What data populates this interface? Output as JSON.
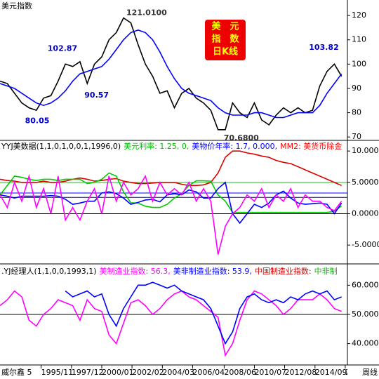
{
  "chart_data": [
    {
      "type": "line",
      "title": "美元指数",
      "x": [
        1993,
        1993.5,
        1994,
        1994.5,
        1995,
        1995.5,
        1996,
        1996.5,
        1997,
        1997.5,
        1998,
        1998.5,
        1999,
        1999.5,
        2000,
        2000.5,
        2001,
        2001.5,
        2002,
        2002.5,
        2003,
        2003.5,
        2004,
        2004.5,
        2005,
        2005.5,
        2006,
        2006.5,
        2007,
        2007.5,
        2008,
        2008.5,
        2009,
        2009.5,
        2010,
        2010.5,
        2011,
        2011.5,
        2012,
        2012.5,
        2013,
        2013.5,
        2014,
        2014.5,
        2015,
        2015.5,
        2016,
        2016.5
      ],
      "xlim": [
        1993,
        2016.9
      ],
      "ylim": [
        68.6,
        126.4
      ],
      "yticks": [
        70,
        80,
        90,
        100,
        110,
        120
      ],
      "series": [
        {
          "color": "#000000",
          "values": [
            93,
            92,
            88,
            84,
            82,
            81,
            86,
            87,
            93,
            100,
            99,
            101,
            92,
            100,
            103,
            110,
            113,
            119,
            117,
            108,
            100,
            95,
            88,
            89,
            82,
            88,
            90,
            86,
            84,
            81,
            73,
            73,
            84,
            80,
            78,
            84,
            77,
            75,
            79,
            82,
            80,
            82,
            80,
            81,
            91,
            97,
            100,
            95
          ]
        },
        {
          "color": "#0000ff",
          "values": [
            92,
            91,
            90,
            88,
            86,
            84,
            83,
            84,
            86,
            89,
            93,
            96,
            97,
            98,
            99,
            102,
            106,
            110,
            113,
            114,
            113,
            110,
            105,
            99,
            94,
            90,
            88,
            87,
            86,
            85,
            82,
            80,
            79,
            79,
            79,
            80,
            80,
            79,
            78,
            78,
            79,
            80,
            80,
            80,
            83,
            88,
            92,
            96
          ]
        }
      ],
      "annotations": [
        {
          "label": "121.0100",
          "value": 121.01,
          "x": 2001.5,
          "color": "#333333"
        },
        {
          "label": "102.87",
          "value": 102.87,
          "x": 1998.3,
          "color": "#0000cc"
        },
        {
          "label": "90.57",
          "value": 90.57,
          "x": 1999.0,
          "color": "#0000cc"
        },
        {
          "label": "80.05",
          "value": 80.05,
          "x": 1995.3,
          "color": "#0000cc"
        },
        {
          "label": "70.6800",
          "value": 70.68,
          "x": 2008.1,
          "color": "#333333"
        },
        {
          "label": "103.82",
          "value": 103.82,
          "x": 2015.9,
          "color": "#0000cc"
        }
      ],
      "badge": [
        "美　元",
        "指　数",
        "日K线"
      ]
    },
    {
      "type": "line",
      "legend": [
        {
          "text": "YYJ美数据(1,1,0,1,0,0,1,1996,0)",
          "color": "#000000"
        },
        {
          "text": "美元利率: 1.25, 0,",
          "color": "#00bb00"
        },
        {
          "text": "美物价年率: 1.7, 0.000,",
          "color": "#0000ff"
        },
        {
          "text": "MM2: 美货币除金",
          "color": "#ff0000"
        }
      ],
      "x": [
        1993,
        1993.5,
        1994,
        1994.5,
        1995,
        1995.5,
        1996,
        1996.5,
        1997,
        1997.5,
        1998,
        1998.5,
        1999,
        1999.5,
        2000,
        2000.5,
        2001,
        2001.5,
        2002,
        2002.5,
        2003,
        2003.5,
        2004,
        2004.5,
        2005,
        2005.5,
        2006,
        2006.5,
        2007,
        2007.5,
        2008,
        2008.5,
        2009,
        2009.5,
        2010,
        2010.5,
        2011,
        2011.5,
        2012,
        2012.5,
        2013,
        2013.5,
        2014,
        2014.5,
        2015,
        2015.5,
        2016,
        2016.5
      ],
      "xlim": [
        1993,
        2016.9
      ],
      "ylim": [
        -8,
        11.7
      ],
      "yticks": [
        {
          "value": 10,
          "label": "10.0000"
        },
        {
          "value": 5,
          "label": "5.0000"
        },
        {
          "value": 0,
          "label": "0.0000"
        },
        {
          "value": -5,
          "label": "-5.0000"
        }
      ],
      "hlines": [
        {
          "value": 5,
          "color": "#00cc00"
        },
        {
          "value": 3.3,
          "color": "#0000ff"
        },
        {
          "value": 2.6,
          "color": "#000080"
        },
        {
          "value": 0,
          "color": "#000000"
        }
      ],
      "series": [
        {
          "color": "#dd0000",
          "values": [
            5.5,
            5.3,
            5.2,
            5,
            5,
            5,
            5.2,
            5,
            5,
            5.2,
            5.5,
            5.7,
            5.5,
            5.2,
            5.3,
            5.5,
            5.6,
            5.2,
            5,
            4.8,
            4.8,
            4.9,
            5,
            5,
            5,
            4.7,
            4.5,
            4.5,
            4.6,
            5,
            6.5,
            9,
            10,
            10,
            9.7,
            9.5,
            9.2,
            9,
            8.5,
            8.2,
            8,
            7.5,
            7,
            6.5,
            6,
            5.5,
            5,
            4.5
          ]
        },
        {
          "color": "#00cc00",
          "values": [
            3,
            4.5,
            6,
            5.8,
            5.5,
            5.3,
            5.5,
            5.5,
            5.3,
            5.5,
            5.5,
            5.5,
            4.8,
            5,
            5.5,
            6.5,
            6,
            3.5,
            1.75,
            1.7,
            1.2,
            1,
            1,
            1.5,
            2.5,
            3.2,
            4.5,
            5.25,
            5.25,
            5.2,
            3,
            2,
            0.2,
            0.2,
            0.2,
            0.2,
            0.2,
            0.2,
            0.2,
            0.2,
            0.2,
            0.2,
            0.2,
            0.2,
            0.2,
            0.2,
            0.4,
            1.25
          ]
        },
        {
          "color": "#0000ff",
          "values": [
            3,
            2.8,
            2.5,
            2.8,
            2.8,
            2.8,
            2.8,
            2.9,
            2.8,
            2.3,
            1.5,
            1.7,
            2,
            2,
            3.3,
            3.5,
            3.2,
            2.5,
            1.5,
            1.8,
            2.2,
            2.3,
            1.9,
            3,
            3.2,
            3,
            3.8,
            3.5,
            2.5,
            2.5,
            4,
            5,
            0,
            -1.5,
            0,
            1.5,
            1,
            1.7,
            3,
            3.6,
            2.5,
            1.7,
            1.5,
            1.6,
            1.7,
            1.5,
            0,
            1.7
          ]
        },
        {
          "color": "#ff00ff",
          "values": [
            3,
            1,
            5,
            2,
            6,
            1,
            4,
            0,
            6,
            -1,
            1,
            -1,
            2,
            4,
            0,
            6,
            2,
            5,
            3,
            4,
            6,
            2,
            5,
            3,
            4,
            3,
            5,
            2,
            4,
            2,
            -6.5,
            -2,
            0,
            1,
            3,
            2,
            4,
            1,
            3,
            2,
            4,
            1,
            3,
            2,
            2,
            1,
            0.5,
            2
          ]
        }
      ]
    },
    {
      "type": "line",
      "legend": [
        {
          "text": ".YJ经理人(1,1,0,0,1993,1)",
          "color": "#000000"
        },
        {
          "text": "美制造业指数: 56.3,",
          "color": "#ff00ff"
        },
        {
          "text": "美非制造业指数: 53.9,",
          "color": "#0000ff"
        },
        {
          "text": "中国制造业指数:",
          "color": "#cc0000"
        },
        {
          "text": "中非制",
          "color": "#00bb00"
        }
      ],
      "x": [
        1993,
        1993.5,
        1994,
        1994.5,
        1995,
        1995.5,
        1996,
        1996.5,
        1997,
        1997.5,
        1998,
        1998.5,
        1999,
        1999.5,
        2000,
        2000.5,
        2001,
        2001.5,
        2002,
        2002.5,
        2003,
        2003.5,
        2004,
        2004.5,
        2005,
        2005.5,
        2006,
        2006.5,
        2007,
        2007.5,
        2008,
        2008.5,
        2009,
        2009.5,
        2010,
        2010.5,
        2011,
        2011.5,
        2012,
        2012.5,
        2013,
        2013.5,
        2014,
        2014.5,
        2015,
        2015.5,
        2016,
        2016.5
      ],
      "xlim": [
        1993,
        2016.9
      ],
      "ylim": [
        32.7,
        66.8
      ],
      "yticks": [
        {
          "value": 60,
          "label": "60.0000"
        },
        {
          "value": 50,
          "label": "50.0000"
        },
        {
          "value": 40,
          "label": "40.0000"
        }
      ],
      "hlines": [
        {
          "value": 50,
          "color": "#000000"
        }
      ],
      "series": [
        {
          "color": "#ff00ff",
          "values": [
            53,
            55,
            58,
            56,
            48,
            46,
            50,
            52,
            55,
            54,
            53,
            48,
            55,
            52,
            51,
            43,
            40,
            47,
            54,
            55,
            53,
            50,
            52,
            55,
            57,
            58,
            56,
            55,
            53,
            51,
            49,
            36,
            40,
            48,
            55,
            58,
            57,
            55,
            53,
            50,
            52,
            55,
            55,
            55,
            57,
            55,
            52,
            51
          ]
        },
        {
          "color": "#0000ff",
          "values": [
            null,
            null,
            null,
            null,
            null,
            null,
            null,
            null,
            null,
            58,
            56,
            57,
            58,
            56,
            57,
            50,
            46,
            52,
            56,
            60,
            60,
            61,
            60,
            59,
            60,
            58,
            57,
            56,
            55,
            52,
            46,
            40,
            44,
            52,
            56,
            57,
            55,
            54,
            55,
            54,
            56,
            55,
            57,
            58,
            57,
            58,
            55,
            56
          ]
        }
      ],
      "xticks": [
        {
          "value": 1995.83,
          "label": "1995/11"
        },
        {
          "value": 1997.92,
          "label": "1997/12"
        },
        {
          "value": 2000.0,
          "label": "2000/01"
        },
        {
          "value": 2002.08,
          "label": "2002/02"
        },
        {
          "value": 2004.17,
          "label": "2004/03"
        },
        {
          "value": 2006.25,
          "label": "2006/04"
        },
        {
          "value": 2008.42,
          "label": "2008/06"
        },
        {
          "value": 2010.5,
          "label": "2010/07"
        },
        {
          "value": 2012.58,
          "label": "2012/08"
        },
        {
          "value": 2014.67,
          "label": "2014/09"
        },
        {
          "value": 2016.75,
          "label": "201"
        }
      ]
    }
  ],
  "footer": {
    "left": "威尔鑫 5",
    "right": "周线"
  }
}
